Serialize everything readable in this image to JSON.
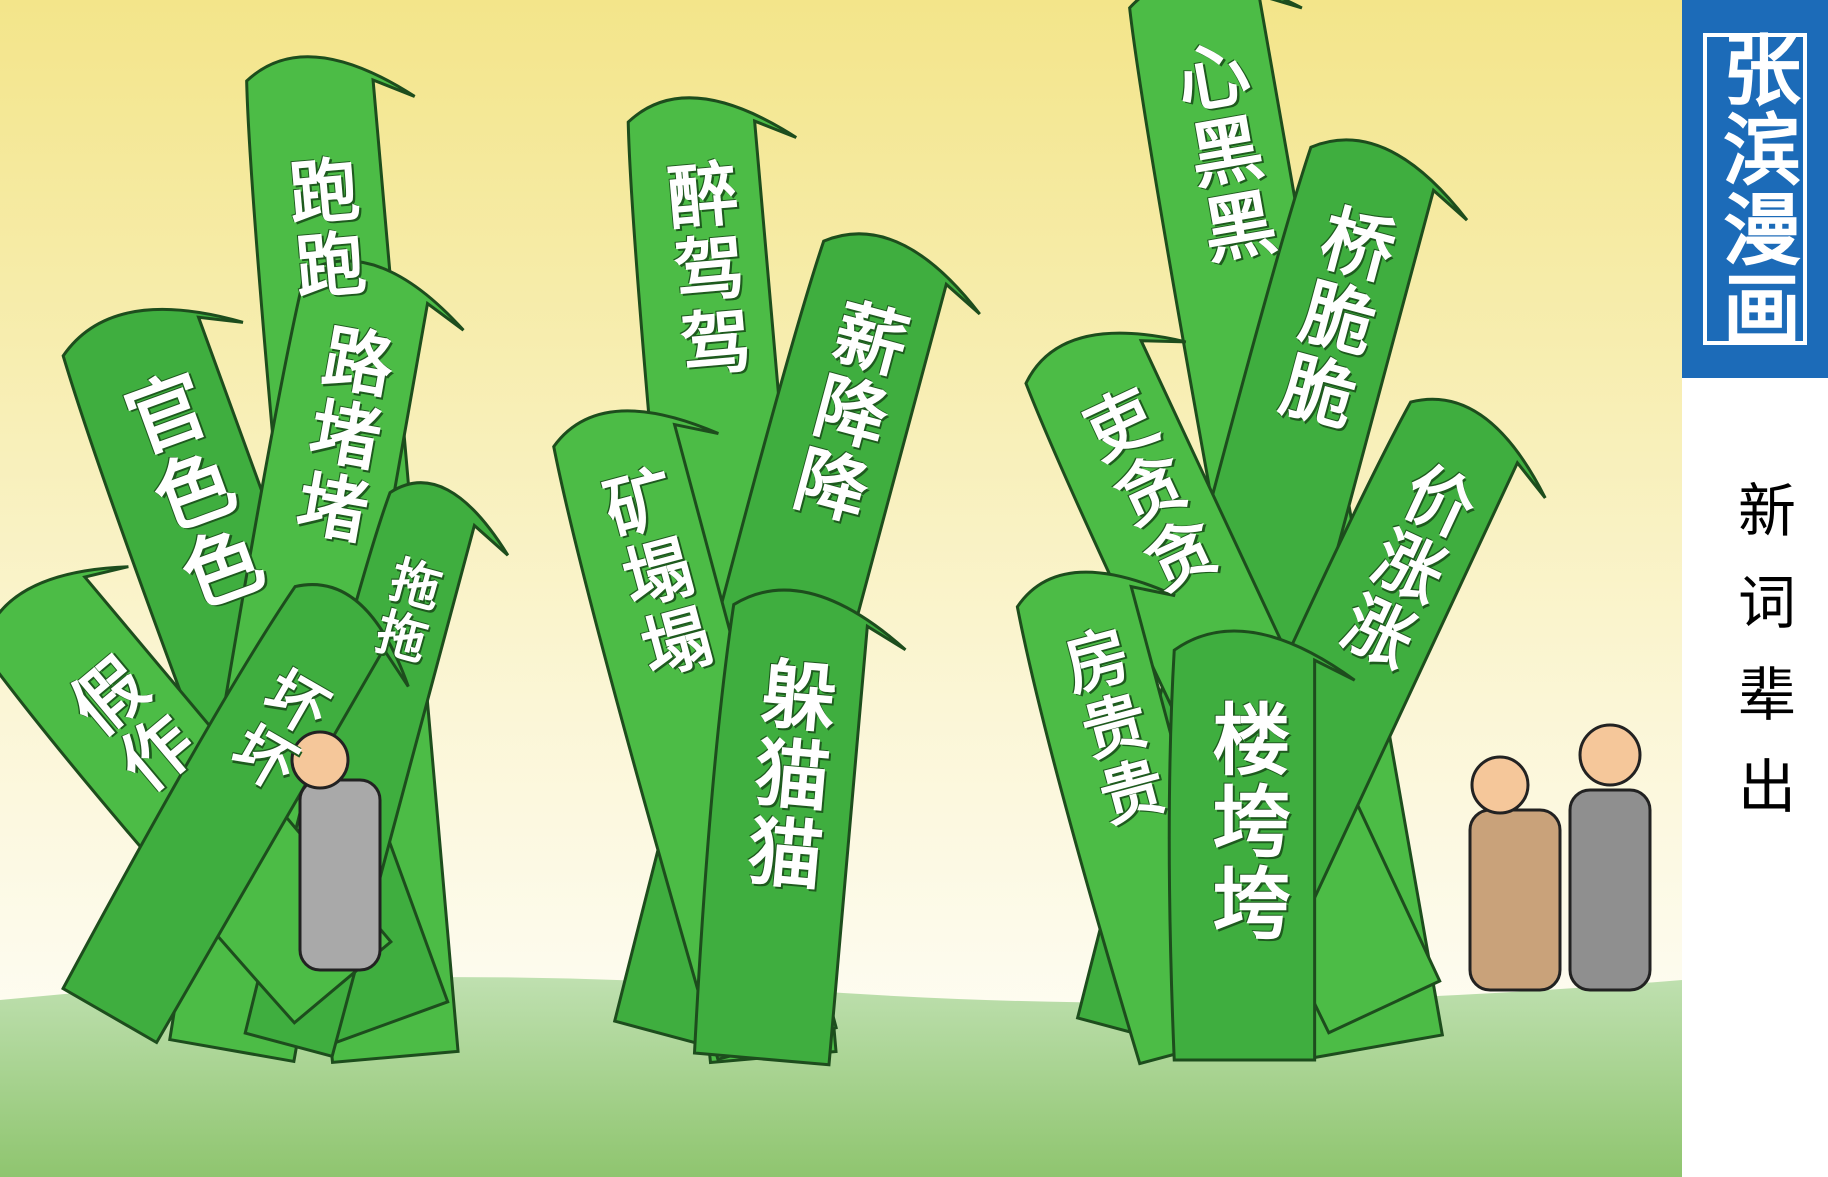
{
  "banner": {
    "author": "张滨漫画",
    "caption": "新词辈出"
  },
  "leaves": [
    {
      "label": "跑跑"
    },
    {
      "label": "官色色"
    },
    {
      "label": "路堵堵"
    },
    {
      "label": "拖拖"
    },
    {
      "label": "假作"
    },
    {
      "label": "坏坏"
    },
    {
      "label": "醉驾驾"
    },
    {
      "label": "薪降降"
    },
    {
      "label": "矿塌塌"
    },
    {
      "label": "躲猫猫"
    },
    {
      "label": "心黑黑"
    },
    {
      "label": "桥脆脆"
    },
    {
      "label": "吏贪贪"
    },
    {
      "label": "价涨涨"
    },
    {
      "label": "房贵贵"
    },
    {
      "label": "楼垮垮"
    }
  ]
}
